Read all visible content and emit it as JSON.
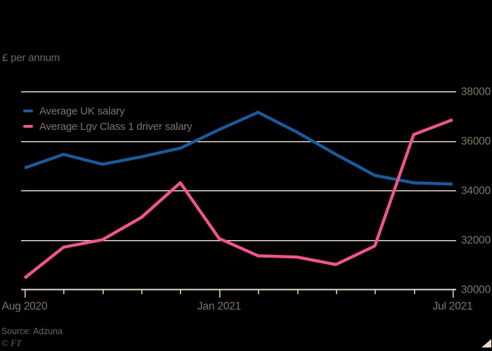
{
  "footer": {
    "source": "Source: Adzuna",
    "credit": "© FT"
  },
  "colors": {
    "background": "#000000",
    "grid": "#e9dacb",
    "axis": "#e9dacb",
    "axis_text": "#7d766c",
    "subtitle_text": "#6e6860",
    "footer_text": "#6b655d",
    "corner_triangle": "#e9dacb"
  },
  "chart_data": {
    "type": "line",
    "subtitle": "£ per annum",
    "x": [
      "Aug 2020",
      "Sep 2020",
      "Oct 2020",
      "Nov 2020",
      "Dec 2020",
      "Jan 2021",
      "Feb 2021",
      "Mar 2021",
      "Apr 2021",
      "May 2021",
      "Jun 2021",
      "Jul 2021"
    ],
    "x_axis_labels": [
      {
        "index": 0,
        "label": "Aug 2020"
      },
      {
        "index": 5,
        "label": "Jan 2021"
      },
      {
        "index": 11,
        "label": "Jul 2021"
      }
    ],
    "y_ticks": [
      30000,
      32000,
      34000,
      36000,
      38000
    ],
    "ylim": [
      30000,
      38000
    ],
    "grid": true,
    "legend_position": "top-left",
    "series": [
      {
        "name": "Average UK salary",
        "color": "#1a5a9b",
        "values": [
          34900,
          35450,
          35050,
          35350,
          35700,
          36450,
          37150,
          36350,
          35450,
          34600,
          34300,
          34250
        ]
      },
      {
        "name": "Average Lgv Class 1 driver salary",
        "color": "#f0558c",
        "values": [
          30450,
          31700,
          32000,
          32900,
          34300,
          32050,
          31350,
          31300,
          31000,
          31750,
          36250,
          36850
        ]
      }
    ]
  }
}
